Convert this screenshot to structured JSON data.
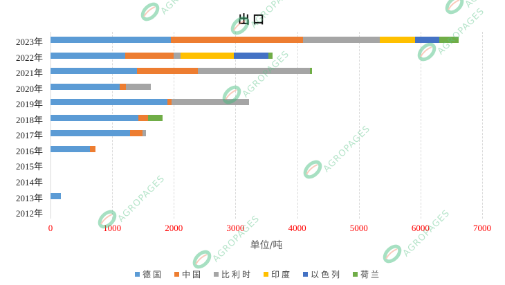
{
  "chart_data": {
    "type": "bar",
    "orientation": "horizontal",
    "stacked": true,
    "title": "出口",
    "xlabel": "单位/吨",
    "ylabel": "",
    "xlim": [
      0,
      7000
    ],
    "x_ticks": [
      "0",
      "1000",
      "2000",
      "3000",
      "4000",
      "5000",
      "6000",
      "7000"
    ],
    "grid": true,
    "legend_position": "bottom",
    "categories": [
      "2023年",
      "2022年",
      "2021年",
      "2020年",
      "2019年",
      "2018年",
      "2017年",
      "2016年",
      "2015年",
      "2014年",
      "2013年",
      "2012年"
    ],
    "series": [
      {
        "name": "德国",
        "color": "#5B9BD5",
        "values": [
          1948,
          1206,
          1406,
          1122,
          1900,
          1420,
          1293,
          641,
          0,
          0,
          171,
          0
        ]
      },
      {
        "name": "中国",
        "color": "#ED7D31",
        "values": [
          2147,
          789,
          982,
          98,
          68,
          161,
          203,
          87,
          0,
          0,
          0,
          0
        ]
      },
      {
        "name": "比利时",
        "color": "#A5A5A5",
        "values": [
          1245,
          118,
          1821,
          412,
          1250,
          0,
          57,
          0,
          0,
          0,
          0,
          0
        ]
      },
      {
        "name": "印度",
        "color": "#FFC000",
        "values": [
          568,
          857,
          0,
          0,
          0,
          0,
          0,
          0,
          0,
          0,
          0,
          0
        ]
      },
      {
        "name": "以色列",
        "color": "#4472C4",
        "values": [
          400,
          563,
          0,
          0,
          0,
          0,
          0,
          0,
          0,
          0,
          0,
          0
        ]
      },
      {
        "name": "荷兰",
        "color": "#70AD47",
        "values": [
          307,
          71,
          37,
          0,
          0,
          237,
          0,
          0,
          0,
          0,
          0,
          0
        ]
      }
    ]
  },
  "watermark": "AGROPAGES"
}
